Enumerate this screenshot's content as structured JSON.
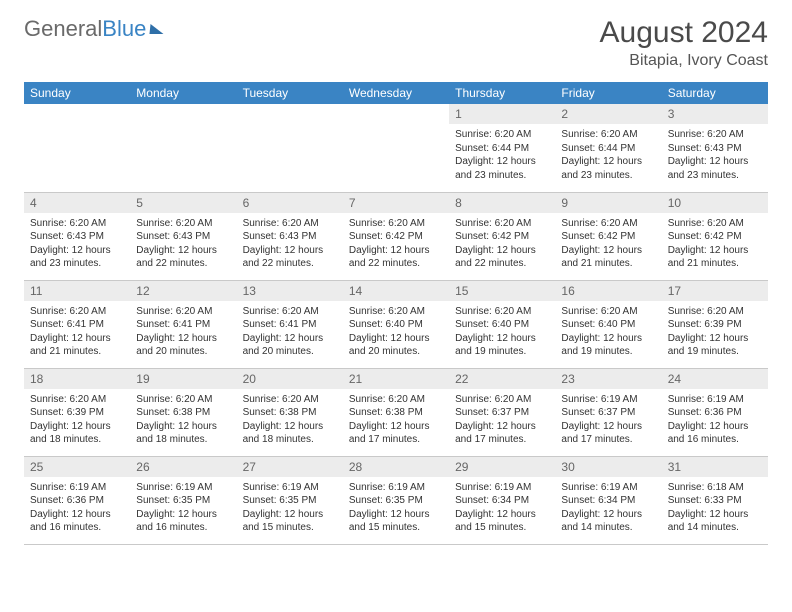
{
  "logo": {
    "part1": "General",
    "part2": "Blue"
  },
  "title": "August 2024",
  "subtitle": "Bitapia, Ivory Coast",
  "colors": {
    "header_bg": "#3a84c4",
    "header_fg": "#ffffff",
    "daynum_bg": "#ececec",
    "border": "#c9c9c9",
    "text": "#333333"
  },
  "day_headers": [
    "Sunday",
    "Monday",
    "Tuesday",
    "Wednesday",
    "Thursday",
    "Friday",
    "Saturday"
  ],
  "weeks": [
    [
      null,
      null,
      null,
      null,
      {
        "n": "1",
        "sr": "6:20 AM",
        "ss": "6:44 PM",
        "dl": "12 hours and 23 minutes."
      },
      {
        "n": "2",
        "sr": "6:20 AM",
        "ss": "6:44 PM",
        "dl": "12 hours and 23 minutes."
      },
      {
        "n": "3",
        "sr": "6:20 AM",
        "ss": "6:43 PM",
        "dl": "12 hours and 23 minutes."
      }
    ],
    [
      {
        "n": "4",
        "sr": "6:20 AM",
        "ss": "6:43 PM",
        "dl": "12 hours and 23 minutes."
      },
      {
        "n": "5",
        "sr": "6:20 AM",
        "ss": "6:43 PM",
        "dl": "12 hours and 22 minutes."
      },
      {
        "n": "6",
        "sr": "6:20 AM",
        "ss": "6:43 PM",
        "dl": "12 hours and 22 minutes."
      },
      {
        "n": "7",
        "sr": "6:20 AM",
        "ss": "6:42 PM",
        "dl": "12 hours and 22 minutes."
      },
      {
        "n": "8",
        "sr": "6:20 AM",
        "ss": "6:42 PM",
        "dl": "12 hours and 22 minutes."
      },
      {
        "n": "9",
        "sr": "6:20 AM",
        "ss": "6:42 PM",
        "dl": "12 hours and 21 minutes."
      },
      {
        "n": "10",
        "sr": "6:20 AM",
        "ss": "6:42 PM",
        "dl": "12 hours and 21 minutes."
      }
    ],
    [
      {
        "n": "11",
        "sr": "6:20 AM",
        "ss": "6:41 PM",
        "dl": "12 hours and 21 minutes."
      },
      {
        "n": "12",
        "sr": "6:20 AM",
        "ss": "6:41 PM",
        "dl": "12 hours and 20 minutes."
      },
      {
        "n": "13",
        "sr": "6:20 AM",
        "ss": "6:41 PM",
        "dl": "12 hours and 20 minutes."
      },
      {
        "n": "14",
        "sr": "6:20 AM",
        "ss": "6:40 PM",
        "dl": "12 hours and 20 minutes."
      },
      {
        "n": "15",
        "sr": "6:20 AM",
        "ss": "6:40 PM",
        "dl": "12 hours and 19 minutes."
      },
      {
        "n": "16",
        "sr": "6:20 AM",
        "ss": "6:40 PM",
        "dl": "12 hours and 19 minutes."
      },
      {
        "n": "17",
        "sr": "6:20 AM",
        "ss": "6:39 PM",
        "dl": "12 hours and 19 minutes."
      }
    ],
    [
      {
        "n": "18",
        "sr": "6:20 AM",
        "ss": "6:39 PM",
        "dl": "12 hours and 18 minutes."
      },
      {
        "n": "19",
        "sr": "6:20 AM",
        "ss": "6:38 PM",
        "dl": "12 hours and 18 minutes."
      },
      {
        "n": "20",
        "sr": "6:20 AM",
        "ss": "6:38 PM",
        "dl": "12 hours and 18 minutes."
      },
      {
        "n": "21",
        "sr": "6:20 AM",
        "ss": "6:38 PM",
        "dl": "12 hours and 17 minutes."
      },
      {
        "n": "22",
        "sr": "6:20 AM",
        "ss": "6:37 PM",
        "dl": "12 hours and 17 minutes."
      },
      {
        "n": "23",
        "sr": "6:19 AM",
        "ss": "6:37 PM",
        "dl": "12 hours and 17 minutes."
      },
      {
        "n": "24",
        "sr": "6:19 AM",
        "ss": "6:36 PM",
        "dl": "12 hours and 16 minutes."
      }
    ],
    [
      {
        "n": "25",
        "sr": "6:19 AM",
        "ss": "6:36 PM",
        "dl": "12 hours and 16 minutes."
      },
      {
        "n": "26",
        "sr": "6:19 AM",
        "ss": "6:35 PM",
        "dl": "12 hours and 16 minutes."
      },
      {
        "n": "27",
        "sr": "6:19 AM",
        "ss": "6:35 PM",
        "dl": "12 hours and 15 minutes."
      },
      {
        "n": "28",
        "sr": "6:19 AM",
        "ss": "6:35 PM",
        "dl": "12 hours and 15 minutes."
      },
      {
        "n": "29",
        "sr": "6:19 AM",
        "ss": "6:34 PM",
        "dl": "12 hours and 15 minutes."
      },
      {
        "n": "30",
        "sr": "6:19 AM",
        "ss": "6:34 PM",
        "dl": "12 hours and 14 minutes."
      },
      {
        "n": "31",
        "sr": "6:18 AM",
        "ss": "6:33 PM",
        "dl": "12 hours and 14 minutes."
      }
    ]
  ],
  "labels": {
    "sunrise": "Sunrise: ",
    "sunset": "Sunset: ",
    "daylight": "Daylight: "
  }
}
